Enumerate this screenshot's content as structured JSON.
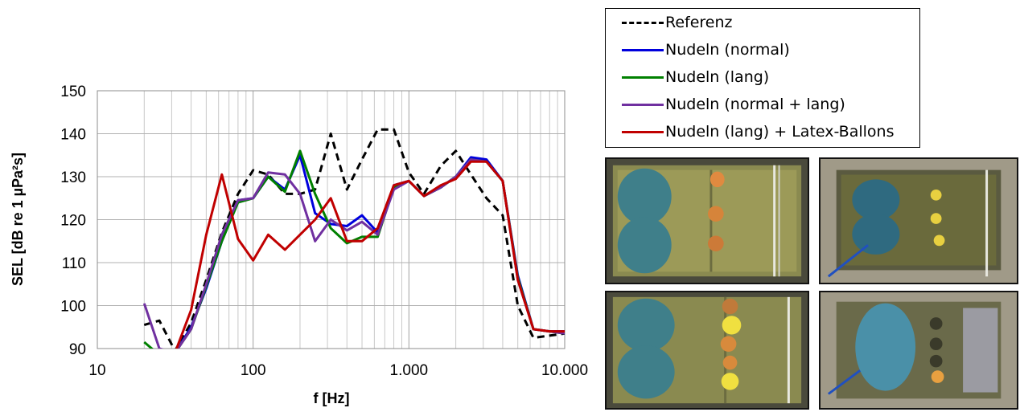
{
  "chart_data": {
    "type": "line",
    "xscale": "log",
    "xlim": [
      10,
      10000
    ],
    "ylim": [
      90,
      150
    ],
    "xlabel": "f [Hz]",
    "ylabel": "SEL [dB re 1 µPa²s]",
    "title": "",
    "grid": true,
    "legend_position": "top-right",
    "xticks": [
      {
        "value": 10,
        "label": "10"
      },
      {
        "value": 100,
        "label": "100"
      },
      {
        "value": 1000,
        "label": "1.000"
      },
      {
        "value": 10000,
        "label": "10.000"
      }
    ],
    "yticks": [
      90,
      100,
      110,
      120,
      130,
      140,
      150
    ],
    "x": [
      20,
      25,
      31.5,
      40,
      50,
      63,
      80,
      100,
      125,
      160,
      200,
      250,
      315,
      400,
      500,
      630,
      800,
      1000,
      1250,
      1600,
      2000,
      2500,
      3150,
      4000,
      5000,
      6300,
      8000,
      10000
    ],
    "series": [
      {
        "name": "Referenz",
        "color": "#000000",
        "dash": true,
        "values": [
          95.5,
          96.5,
          89.5,
          96,
          106,
          117,
          126,
          131.5,
          130.5,
          126,
          126,
          127,
          140,
          127,
          134,
          141,
          141,
          131,
          126,
          132.5,
          136,
          130.5,
          125,
          121,
          100,
          92.5,
          93,
          93.5
        ]
      },
      {
        "name": "Nudeln (normal)",
        "color": "#0000dd",
        "dash": false,
        "values": [
          null,
          null,
          89,
          95,
          104,
          115,
          124.5,
          125,
          130,
          127,
          135,
          121.5,
          119,
          118.5,
          121,
          117,
          128,
          129,
          125.5,
          127.5,
          130,
          134.5,
          134,
          129,
          107,
          94.5,
          94,
          94
        ]
      },
      {
        "name": "Nudeln (lang)",
        "color": "#008000",
        "dash": false,
        "values": [
          91.5,
          88.5,
          89,
          94.5,
          104.5,
          115,
          124,
          125,
          130,
          126.5,
          136,
          126,
          118,
          114.5,
          116,
          116,
          127.5,
          129,
          125.5,
          127.5,
          130,
          134,
          133.5,
          129,
          106.5,
          94.5,
          94,
          93.5
        ]
      },
      {
        "name": "Nudeln (normal + lang)",
        "color": "#7030a0",
        "dash": false,
        "values": [
          100.5,
          90,
          89,
          94.5,
          105,
          116.5,
          124.5,
          125,
          131,
          130.5,
          126,
          115,
          120,
          117.5,
          119.5,
          116.5,
          127,
          129,
          125.5,
          127.5,
          130,
          134,
          133.5,
          129,
          106,
          94.5,
          94,
          93.5
        ]
      },
      {
        "name": "Nudeln (lang) + Latex-Ballons",
        "color": "#c00000",
        "dash": false,
        "values": [
          null,
          null,
          89,
          99,
          116.5,
          130.5,
          115.5,
          110.5,
          116.5,
          113,
          116.5,
          120,
          125,
          115,
          115,
          118,
          128,
          129,
          125.5,
          128,
          129.5,
          133.5,
          133.5,
          129,
          106,
          94.5,
          94,
          94
        ]
      }
    ]
  },
  "photos": [
    {
      "name": "photo-top-left"
    },
    {
      "name": "photo-top-right"
    },
    {
      "name": "photo-bottom-left"
    },
    {
      "name": "photo-bottom-right"
    }
  ]
}
